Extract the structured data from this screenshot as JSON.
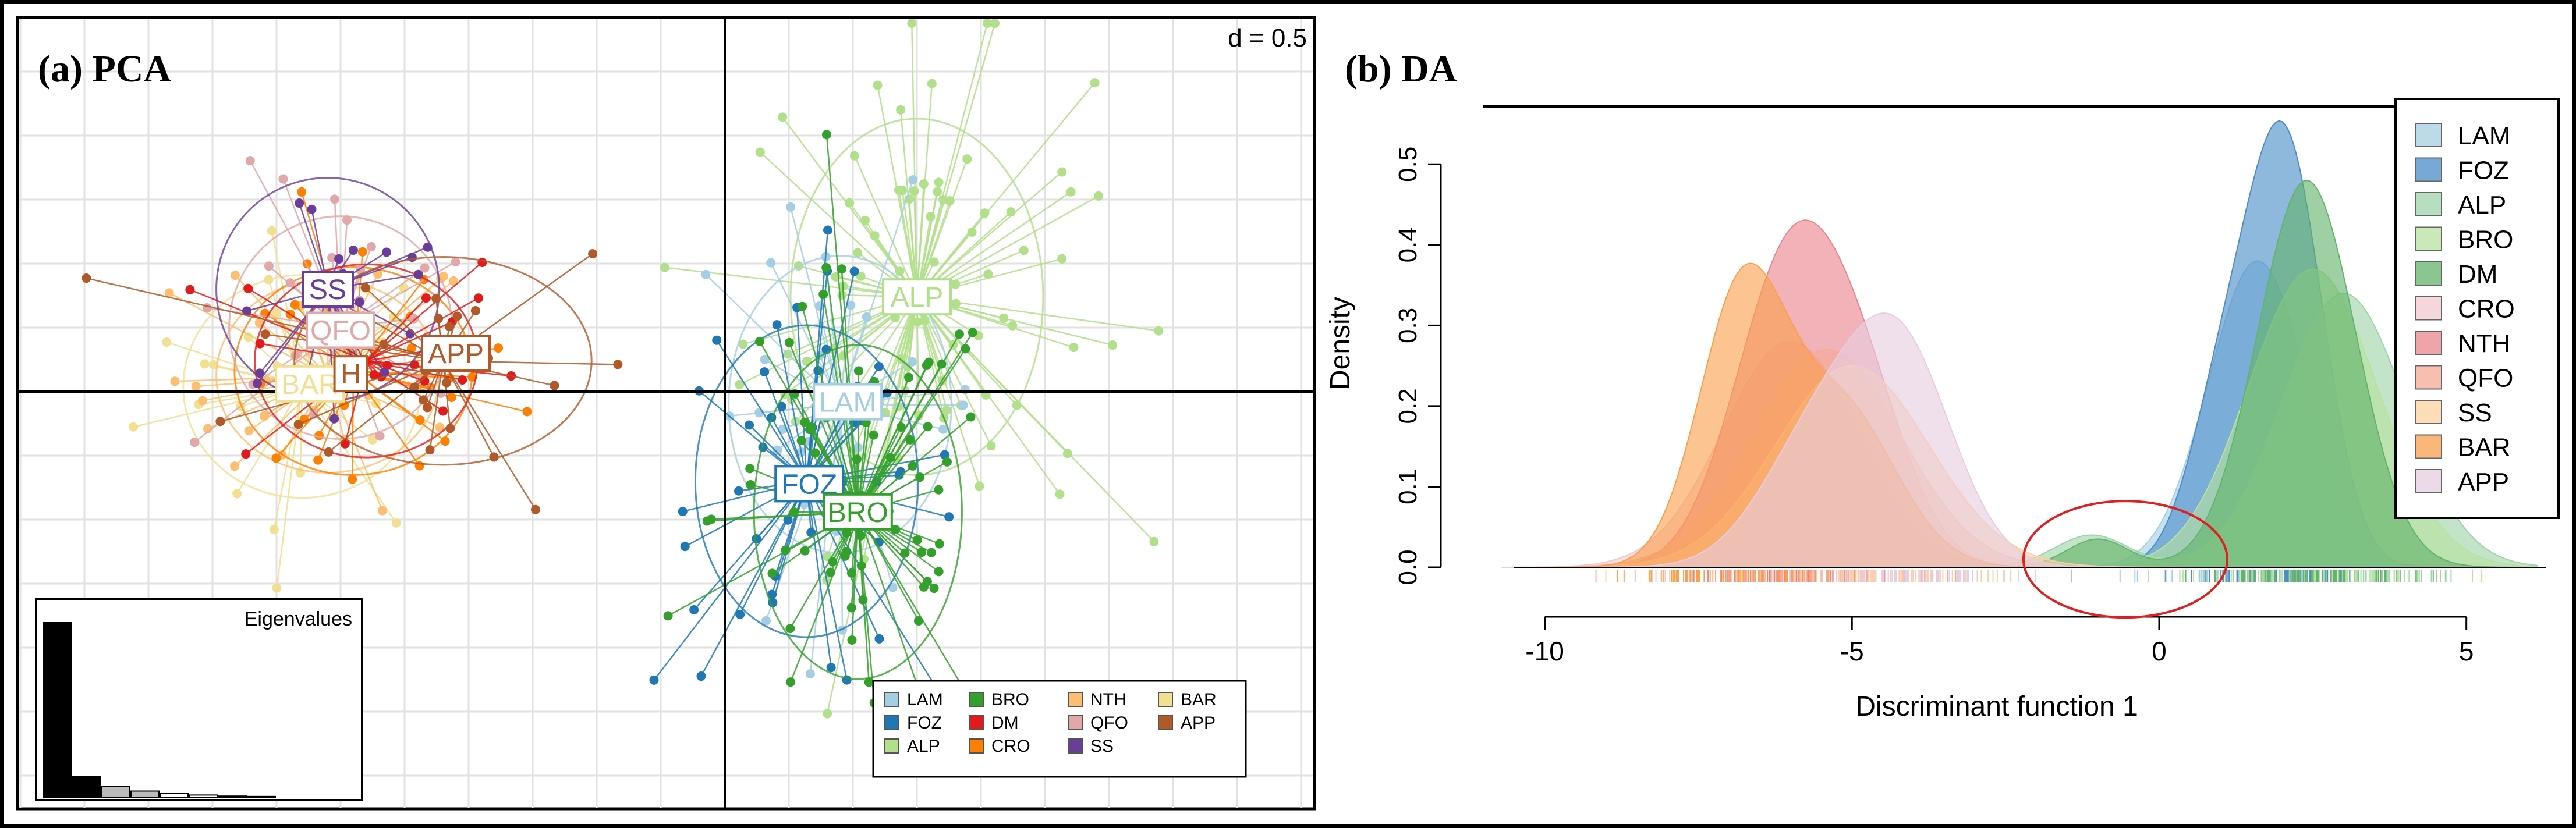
{
  "chart_data": [
    {
      "type": "scatter",
      "panel_label": "(a) PCA",
      "scale_label": "d = 0.5",
      "inset_title": "Eigenvalues",
      "eigenvalues": [
        1.0,
        0.12,
        0.06,
        0.035,
        0.02,
        0.012,
        0.006,
        0.004
      ],
      "group_labels": [
        {
          "name": "SS",
          "x": -1.55,
          "y": 0.4
        },
        {
          "name": "QFO",
          "x": -1.5,
          "y": 0.24
        },
        {
          "name": "APP",
          "x": -1.05,
          "y": 0.15
        },
        {
          "name": "BAR",
          "x": -1.62,
          "y": 0.03
        },
        {
          "name": "H",
          "x": -1.46,
          "y": 0.07
        },
        {
          "name": "ALP",
          "x": 0.75,
          "y": 0.37
        },
        {
          "name": "LAM",
          "x": 0.48,
          "y": -0.04
        },
        {
          "name": "FOZ",
          "x": 0.33,
          "y": -0.36
        },
        {
          "name": "BRO",
          "x": 0.52,
          "y": -0.47
        }
      ],
      "legend": [
        {
          "name": "LAM",
          "color": "#a6cee3"
        },
        {
          "name": "FOZ",
          "color": "#1f78b4"
        },
        {
          "name": "ALP",
          "color": "#b2df8a"
        },
        {
          "name": "BRO",
          "color": "#33a02c"
        },
        {
          "name": "DM",
          "color": "#e31a1c"
        },
        {
          "name": "CRO",
          "color": "#ff7f00"
        },
        {
          "name": "NTH",
          "color": "#fdbf6f"
        },
        {
          "name": "QFO",
          "color": "#e0a8a8"
        },
        {
          "name": "SS",
          "color": "#6a3d9a"
        },
        {
          "name": "BAR",
          "color": "#f0e090"
        },
        {
          "name": "APP",
          "color": "#b15928"
        }
      ]
    },
    {
      "type": "area",
      "panel_label": "(b) DA",
      "title": "",
      "xlabel": "Discriminant function 1",
      "ylabel": "Density",
      "xlim": [
        -11,
        6.5
      ],
      "ylim": [
        0,
        0.55
      ],
      "xticks": [
        -10,
        -5,
        0,
        5
      ],
      "yticks": [
        0.0,
        0.1,
        0.2,
        0.3,
        0.4,
        0.5
      ],
      "ytick_labels": [
        "0.0",
        "0.1",
        "0.2",
        "0.3",
        "0.4",
        "0.5"
      ],
      "series": [
        {
          "name": "LAM",
          "color": "#a6cee3",
          "peaks": [
            [
              1.6,
              0.38,
              0.8
            ]
          ]
        },
        {
          "name": "FOZ",
          "color": "#4a8cc8",
          "peaks": [
            [
              2.05,
              0.52,
              0.62
            ],
            [
              1.0,
              0.18,
              0.55
            ]
          ]
        },
        {
          "name": "ALP",
          "color": "#9fd3a8",
          "peaks": [
            [
              3.0,
              0.34,
              1.0
            ],
            [
              -1.1,
              0.04,
              0.6
            ]
          ]
        },
        {
          "name": "BRO",
          "color": "#b7e2a0",
          "peaks": [
            [
              2.5,
              0.37,
              1.05
            ]
          ]
        },
        {
          "name": "DM",
          "color": "#63b36a",
          "peaks": [
            [
              2.4,
              0.48,
              0.8
            ],
            [
              -1.0,
              0.035,
              0.5
            ]
          ]
        },
        {
          "name": "CRO",
          "color": "#f1c9cf",
          "peaks": [
            [
              -6.0,
              0.28,
              1.1
            ]
          ]
        },
        {
          "name": "NTH",
          "color": "#e8858c",
          "peaks": [
            [
              -6.1,
              0.345,
              0.85
            ],
            [
              -4.9,
              0.2,
              0.8
            ]
          ]
        },
        {
          "name": "QFO",
          "color": "#f6aa96",
          "peaks": [
            [
              -5.4,
              0.27,
              1.2
            ]
          ]
        },
        {
          "name": "SS",
          "color": "#fcd0a0",
          "peaks": [
            [
              -5.0,
              0.25,
              1.25
            ]
          ]
        },
        {
          "name": "BAR",
          "color": "#fa9f4e",
          "peaks": [
            [
              -6.8,
              0.33,
              0.7
            ],
            [
              -5.2,
              0.2,
              0.9
            ]
          ]
        },
        {
          "name": "APP",
          "color": "#e6cde0",
          "peaks": [
            [
              -4.2,
              0.26,
              0.85
            ],
            [
              -5.6,
              0.15,
              0.9
            ]
          ]
        }
      ],
      "annotation": {
        "shape": "ellipse",
        "color": "#e02020",
        "cx": -0.55,
        "cy": 0.01
      }
    }
  ]
}
